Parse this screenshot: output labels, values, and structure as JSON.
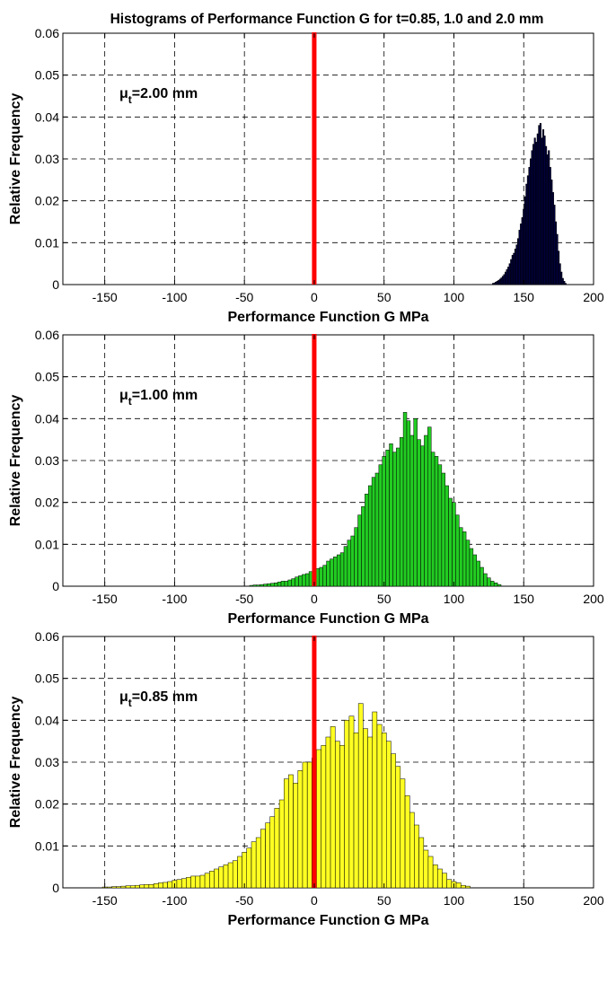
{
  "title": "Histograms of Performance Function G for t=0.85, 1.0 and 2.0 mm",
  "chart_data": [
    {
      "type": "bar",
      "annotation": {
        "prefix": "μ",
        "sub": "t",
        "suffix": "=2.00 mm"
      },
      "xlabel": "Performance Function G MPa",
      "ylabel": "Relative Frequency",
      "xlim": [
        -180,
        200
      ],
      "ylim": [
        0,
        0.06
      ],
      "xticks": [
        -150,
        -100,
        -50,
        0,
        50,
        100,
        150,
        200
      ],
      "yticks": [
        0,
        0.01,
        0.02,
        0.03,
        0.04,
        0.05,
        0.06
      ],
      "grid": true,
      "bar_color": "#000040",
      "bin_width": 1,
      "x": [
        128,
        129,
        130,
        131,
        132,
        133,
        134,
        135,
        136,
        137,
        138,
        139,
        140,
        141,
        142,
        143,
        144,
        145,
        146,
        147,
        148,
        149,
        150,
        151,
        152,
        153,
        154,
        155,
        156,
        157,
        158,
        159,
        160,
        161,
        162,
        163,
        164,
        165,
        166,
        167,
        168,
        169,
        170,
        171,
        172,
        173,
        174,
        175,
        176,
        177,
        178,
        179,
        180
      ],
      "values": [
        0.0003,
        0.0004,
        0.0006,
        0.0008,
        0.001,
        0.0013,
        0.0016,
        0.002,
        0.0024,
        0.003,
        0.0036,
        0.0042,
        0.005,
        0.006,
        0.007,
        0.0075,
        0.0085,
        0.0095,
        0.011,
        0.013,
        0.0145,
        0.016,
        0.018,
        0.021,
        0.024,
        0.026,
        0.028,
        0.03,
        0.032,
        0.0335,
        0.035,
        0.034,
        0.036,
        0.038,
        0.0385,
        0.035,
        0.037,
        0.0355,
        0.033,
        0.031,
        0.032,
        0.028,
        0.025,
        0.022,
        0.019,
        0.015,
        0.012,
        0.008,
        0.005,
        0.003,
        0.0015,
        0.0008,
        0.0003
      ],
      "reference_line": {
        "x": 0,
        "color": "#ff0000"
      }
    },
    {
      "type": "bar",
      "annotation": {
        "prefix": "μ",
        "sub": "t",
        "suffix": "=1.00 mm"
      },
      "xlabel": "Performance Function G MPa",
      "ylabel": "Relative Frequency",
      "xlim": [
        -180,
        200
      ],
      "ylim": [
        0,
        0.06
      ],
      "xticks": [
        -150,
        -100,
        -50,
        0,
        50,
        100,
        150,
        200
      ],
      "yticks": [
        0,
        0.01,
        0.02,
        0.03,
        0.04,
        0.05,
        0.06
      ],
      "grid": true,
      "bar_color": "#22cc22",
      "bin_width": 2.5,
      "x": [
        -45,
        -42.5,
        -40,
        -37.5,
        -35,
        -32.5,
        -30,
        -27.5,
        -25,
        -22.5,
        -20,
        -17.5,
        -15,
        -12.5,
        -10,
        -7.5,
        -5,
        -2.5,
        0,
        2.5,
        5,
        7.5,
        10,
        12.5,
        15,
        17.5,
        20,
        22.5,
        25,
        27.5,
        30,
        32.5,
        35,
        37.5,
        40,
        42.5,
        45,
        47.5,
        50,
        52.5,
        55,
        57.5,
        60,
        62.5,
        65,
        67.5,
        70,
        72.5,
        75,
        77.5,
        80,
        82.5,
        85,
        87.5,
        90,
        92.5,
        95,
        97.5,
        100,
        102.5,
        105,
        107.5,
        110,
        112.5,
        115,
        117.5,
        120,
        122.5,
        125,
        127.5,
        130,
        132.5
      ],
      "values": [
        0.0002,
        0.0003,
        0.0003,
        0.0004,
        0.0005,
        0.0006,
        0.0007,
        0.0008,
        0.001,
        0.0012,
        0.0012,
        0.0015,
        0.0018,
        0.0022,
        0.0025,
        0.0028,
        0.003,
        0.0035,
        0.0045,
        0.0042,
        0.0045,
        0.005,
        0.006,
        0.0065,
        0.007,
        0.0075,
        0.008,
        0.0095,
        0.011,
        0.012,
        0.014,
        0.017,
        0.019,
        0.022,
        0.024,
        0.026,
        0.027,
        0.029,
        0.031,
        0.0325,
        0.034,
        0.032,
        0.033,
        0.0355,
        0.0415,
        0.0395,
        0.036,
        0.04,
        0.035,
        0.0335,
        0.036,
        0.038,
        0.032,
        0.031,
        0.029,
        0.027,
        0.024,
        0.021,
        0.02,
        0.017,
        0.014,
        0.013,
        0.011,
        0.009,
        0.0075,
        0.006,
        0.0045,
        0.003,
        0.002,
        0.0012,
        0.0008,
        0.0004
      ],
      "reference_line": {
        "x": 0,
        "color": "#ff0000"
      }
    },
    {
      "type": "bar",
      "annotation": {
        "prefix": "μ",
        "sub": "t",
        "suffix": "=0.85 mm"
      },
      "xlabel": "Performance Function G MPa",
      "ylabel": "Relative Frequency",
      "xlim": [
        -180,
        200
      ],
      "ylim": [
        0,
        0.06
      ],
      "xticks": [
        -150,
        -100,
        -50,
        0,
        50,
        100,
        150,
        200
      ],
      "yticks": [
        0,
        0.01,
        0.02,
        0.03,
        0.04,
        0.05,
        0.06
      ],
      "grid": true,
      "bar_color": "#ffff22",
      "bin_width": 3.33,
      "x": [
        -150,
        -146.7,
        -143.3,
        -140,
        -136.7,
        -133.3,
        -130,
        -126.7,
        -123.3,
        -120,
        -116.7,
        -113.3,
        -110,
        -106.7,
        -103.3,
        -100,
        -96.7,
        -93.3,
        -90,
        -86.7,
        -83.3,
        -80,
        -76.7,
        -73.3,
        -70,
        -66.7,
        -63.3,
        -60,
        -56.7,
        -53.3,
        -50,
        -46.7,
        -43.3,
        -40,
        -36.7,
        -33.3,
        -30,
        -26.7,
        -23.3,
        -20,
        -16.7,
        -13.3,
        -10,
        -6.7,
        -3.3,
        0,
        3.3,
        6.7,
        10,
        13.3,
        16.7,
        20,
        23.3,
        26.7,
        30,
        33.3,
        36.7,
        40,
        43.3,
        46.7,
        50,
        53.3,
        56.7,
        60,
        63.3,
        66.7,
        70,
        73.3,
        76.7,
        80,
        83.3,
        86.7,
        90,
        93.3,
        96.7,
        100,
        103.3,
        106.7,
        110
      ],
      "values": [
        0.0002,
        0.0002,
        0.0003,
        0.0003,
        0.0004,
        0.0005,
        0.0005,
        0.0006,
        0.0007,
        0.0008,
        0.0008,
        0.001,
        0.0012,
        0.0013,
        0.0015,
        0.0018,
        0.002,
        0.0022,
        0.0025,
        0.0028,
        0.0028,
        0.003,
        0.0035,
        0.004,
        0.0045,
        0.005,
        0.0055,
        0.006,
        0.0065,
        0.0075,
        0.0085,
        0.0095,
        0.011,
        0.012,
        0.014,
        0.0155,
        0.017,
        0.019,
        0.021,
        0.026,
        0.027,
        0.025,
        0.028,
        0.03,
        0.03,
        0.031,
        0.033,
        0.034,
        0.036,
        0.0385,
        0.035,
        0.034,
        0.04,
        0.041,
        0.037,
        0.044,
        0.038,
        0.036,
        0.042,
        0.039,
        0.037,
        0.035,
        0.032,
        0.029,
        0.026,
        0.022,
        0.018,
        0.015,
        0.012,
        0.009,
        0.0075,
        0.0055,
        0.0045,
        0.0035,
        0.002,
        0.0015,
        0.0012,
        0.0006,
        0.0004
      ],
      "reference_line": {
        "x": 0,
        "color": "#ff0000"
      }
    }
  ]
}
